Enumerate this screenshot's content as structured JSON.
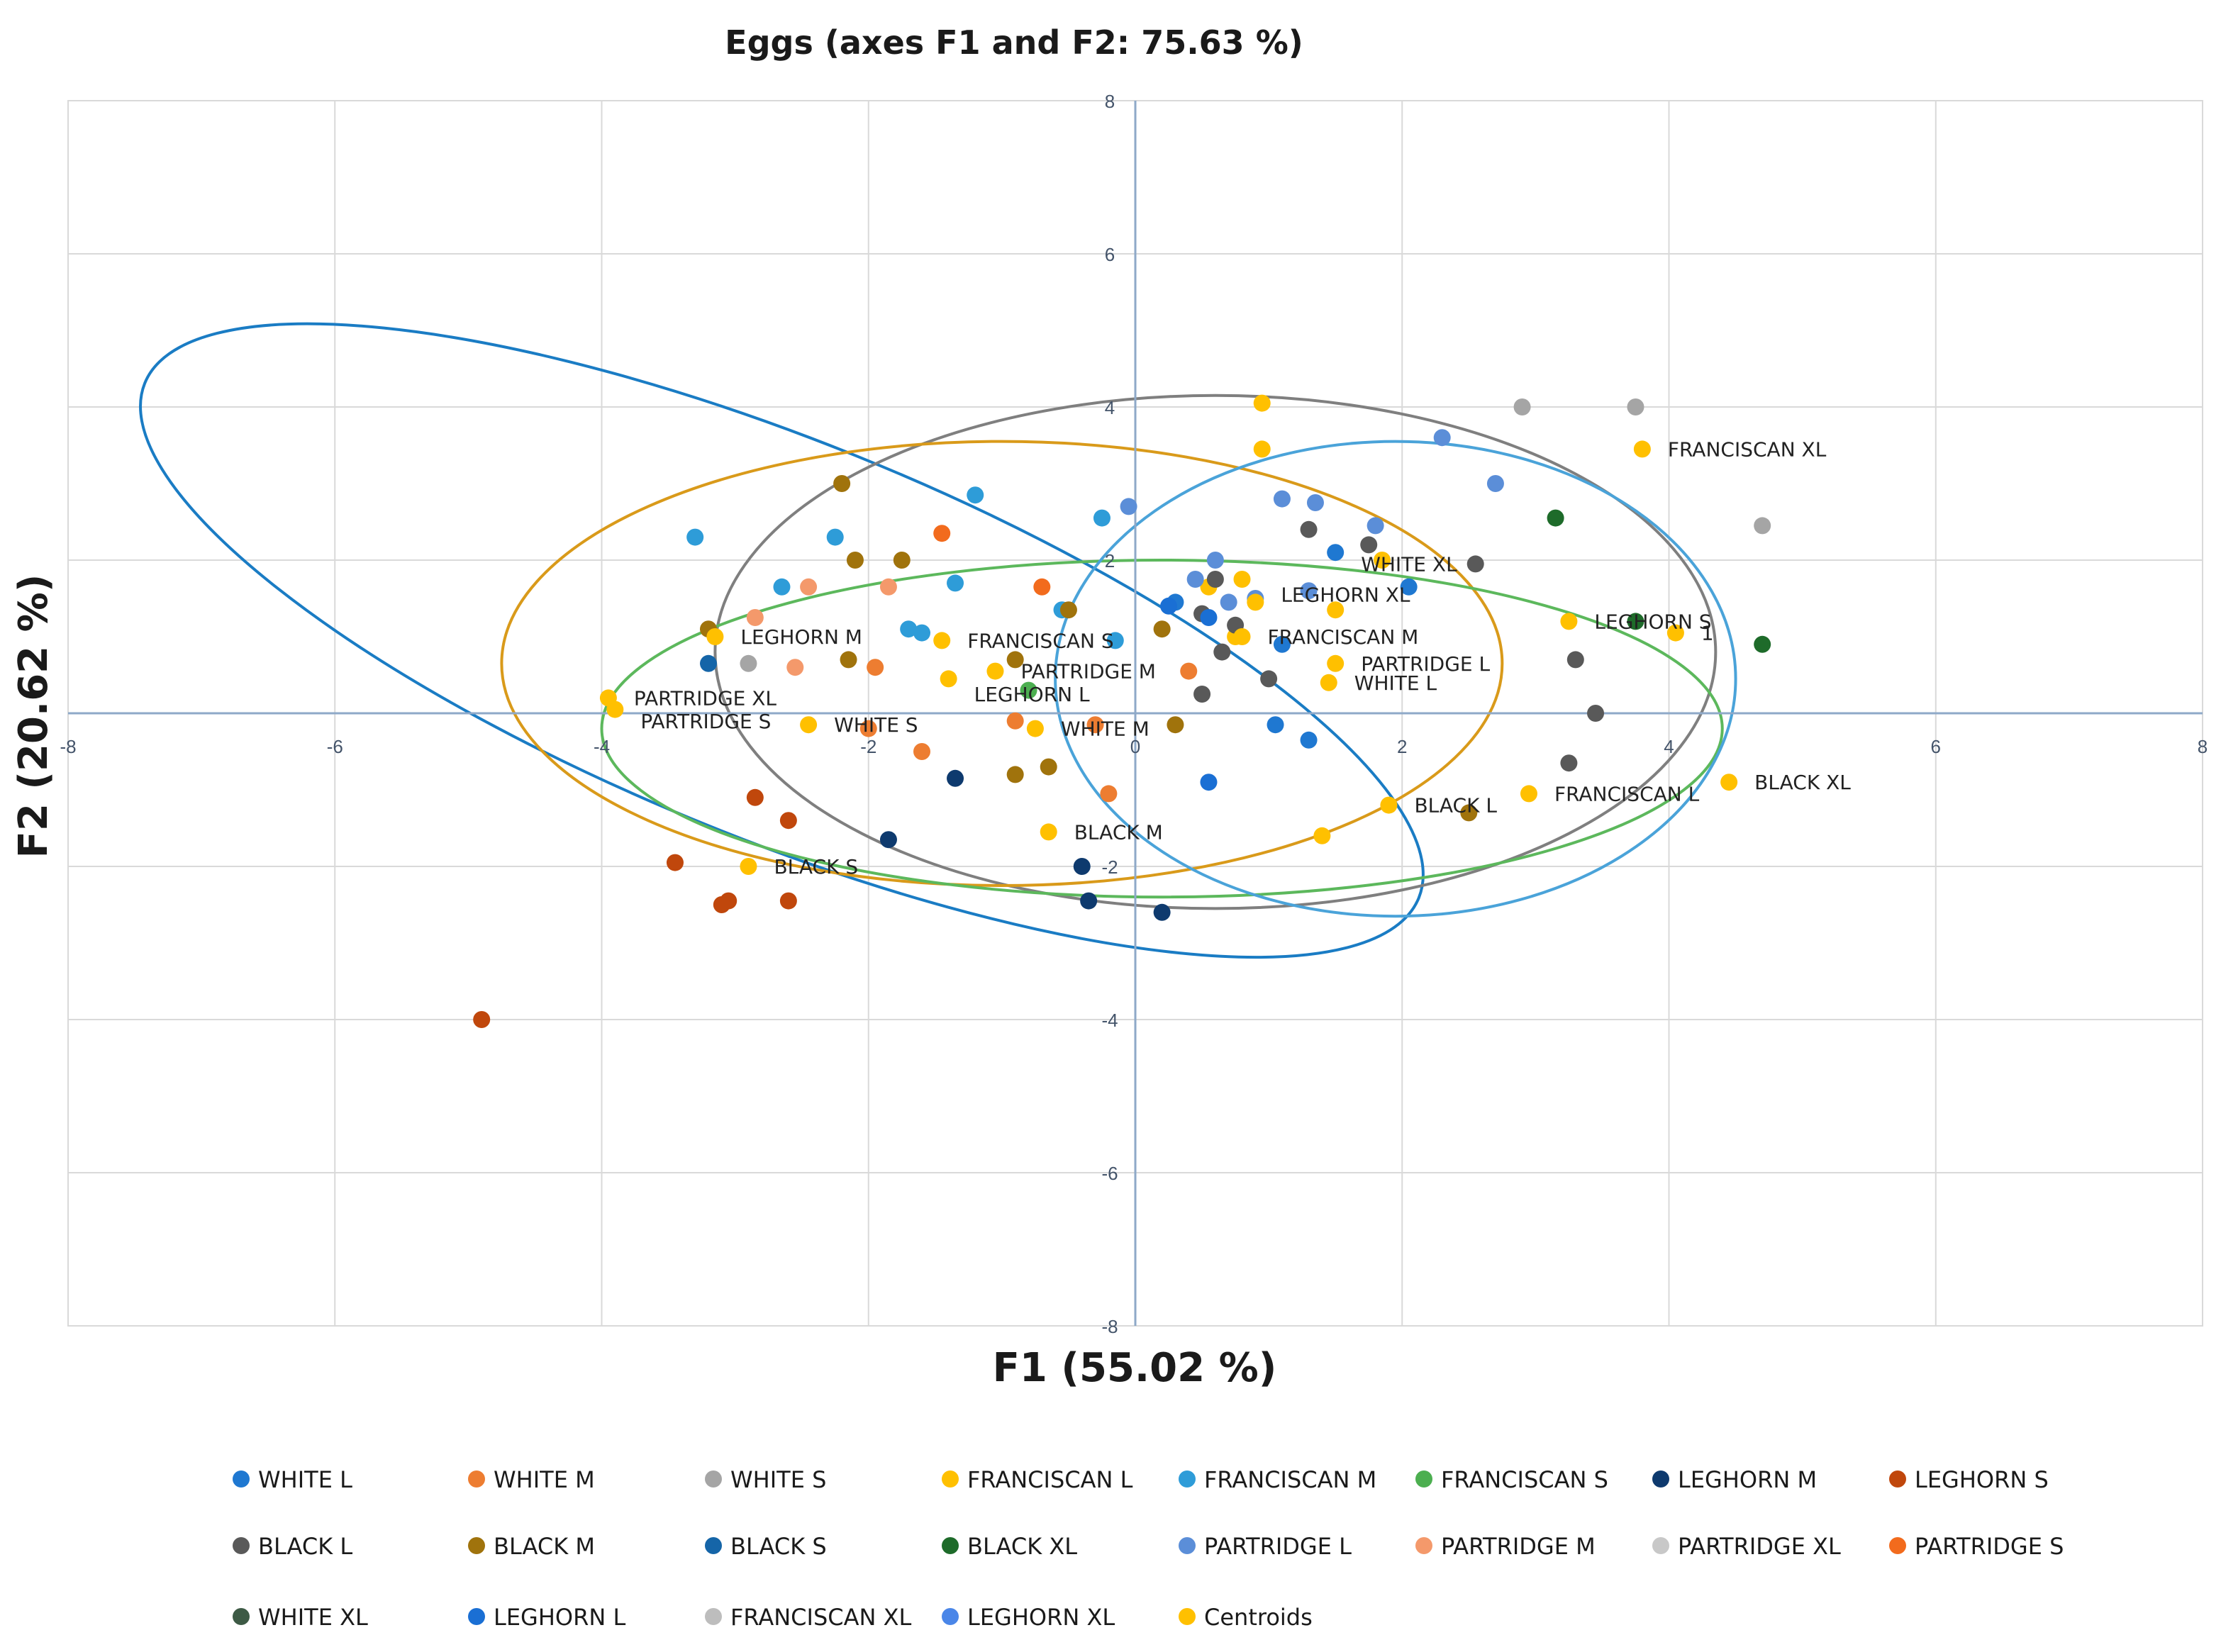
{
  "chart_data": {
    "type": "scatter",
    "title": "Eggs (axes F1 and F2: 75.63 %)",
    "xlabel": "F1 (55.02 %)",
    "ylabel": "F2 (20.62 %)",
    "xlim": [
      -8,
      8
    ],
    "ylim": [
      -8,
      8
    ],
    "x_ticks": [
      -8,
      -6,
      -4,
      -2,
      0,
      2,
      4,
      6,
      8
    ],
    "y_ticks": [
      -8,
      -6,
      -4,
      -2,
      2,
      4,
      6,
      8
    ],
    "grid": true,
    "legend_position": "bottom",
    "series": [
      {
        "name": "WHITE L",
        "color": "#1f78d1",
        "points": [
          [
            1.1,
            0.9
          ],
          [
            0.3,
            1.45
          ],
          [
            1.5,
            2.1
          ],
          [
            2.05,
            1.65
          ],
          [
            1.3,
            -0.35
          ],
          [
            1.05,
            -0.15
          ]
        ]
      },
      {
        "name": "WHITE M",
        "color": "#ed7d31",
        "points": [
          [
            -2.0,
            -0.2
          ],
          [
            -1.95,
            0.6
          ],
          [
            -1.6,
            -0.5
          ],
          [
            -0.9,
            -0.1
          ],
          [
            -0.2,
            -1.05
          ],
          [
            -0.3,
            -0.15
          ],
          [
            0.4,
            0.55
          ]
        ]
      },
      {
        "name": "WHITE S",
        "color": "#a5a5a5",
        "points": [
          [
            -2.9,
            0.65
          ],
          [
            2.9,
            4.0
          ],
          [
            3.75,
            4.0
          ],
          [
            4.7,
            2.45
          ]
        ]
      },
      {
        "name": "FRANCISCAN L",
        "color": "#ffc000",
        "points": [
          [
            0.95,
            4.05
          ],
          [
            0.95,
            3.45
          ],
          [
            1.85,
            2.0
          ],
          [
            0.8,
            1.75
          ],
          [
            1.4,
            -1.6
          ],
          [
            0.55,
            1.65
          ],
          [
            0.75,
            1.0
          ]
        ]
      },
      {
        "name": "FRANCISCAN M",
        "color": "#2e9cd8",
        "points": [
          [
            -3.3,
            2.3
          ],
          [
            -2.25,
            2.3
          ],
          [
            -1.2,
            2.85
          ],
          [
            -2.65,
            1.65
          ],
          [
            -1.35,
            1.7
          ],
          [
            -0.25,
            2.55
          ],
          [
            -1.7,
            1.1
          ],
          [
            -1.6,
            1.05
          ],
          [
            -0.55,
            1.35
          ],
          [
            -0.15,
            0.95
          ]
        ]
      },
      {
        "name": "FRANCISCAN S",
        "color": "#4caf50",
        "points": [
          [
            -0.8,
            0.3
          ]
        ]
      },
      {
        "name": "LEGHORN M",
        "color": "#0e3a6e",
        "points": [
          [
            -1.35,
            -0.85
          ],
          [
            -1.85,
            -1.65
          ],
          [
            -0.4,
            -2.0
          ],
          [
            -0.35,
            -2.45
          ],
          [
            0.2,
            -2.6
          ]
        ]
      },
      {
        "name": "LEGHORN S",
        "color": "#c0470c",
        "points": [
          [
            -2.85,
            -1.1
          ],
          [
            -2.6,
            -1.4
          ],
          [
            -3.45,
            -1.95
          ],
          [
            -3.05,
            -2.45
          ],
          [
            -3.1,
            -2.5
          ],
          [
            -2.6,
            -2.45
          ],
          [
            -4.9,
            -4.0
          ]
        ]
      },
      {
        "name": "BLACK L",
        "color": "#595959",
        "points": [
          [
            1.3,
            2.4
          ],
          [
            1.75,
            2.2
          ],
          [
            2.55,
            1.95
          ],
          [
            0.6,
            1.75
          ],
          [
            0.5,
            1.3
          ],
          [
            0.75,
            1.15
          ],
          [
            0.65,
            0.8
          ],
          [
            1.0,
            0.45
          ],
          [
            0.5,
            0.25
          ],
          [
            3.3,
            0.7
          ],
          [
            3.45,
            0.0
          ],
          [
            3.25,
            -0.65
          ]
        ]
      },
      {
        "name": "BLACK M",
        "color": "#a0730c",
        "points": [
          [
            -2.2,
            3.0
          ],
          [
            -2.1,
            2.0
          ],
          [
            -1.75,
            2.0
          ],
          [
            -3.2,
            1.1
          ],
          [
            -2.15,
            0.7
          ],
          [
            -0.9,
            0.7
          ],
          [
            -0.5,
            1.35
          ],
          [
            0.2,
            1.1
          ],
          [
            -0.9,
            -0.8
          ],
          [
            -0.65,
            -0.7
          ],
          [
            0.3,
            -0.15
          ],
          [
            2.5,
            -1.3
          ]
        ]
      },
      {
        "name": "BLACK S",
        "color": "#1565a8",
        "points": [
          [
            -3.2,
            0.65
          ]
        ]
      },
      {
        "name": "BLACK XL",
        "color": "#1e6b2a",
        "points": [
          [
            3.15,
            2.55
          ],
          [
            3.75,
            1.2
          ],
          [
            4.7,
            0.9
          ]
        ]
      },
      {
        "name": "PARTRIDGE L",
        "color": "#5b8ed8",
        "points": [
          [
            2.3,
            3.6
          ],
          [
            2.7,
            3.0
          ],
          [
            1.1,
            2.8
          ],
          [
            1.35,
            2.75
          ],
          [
            1.8,
            2.45
          ],
          [
            0.6,
            2.0
          ],
          [
            0.45,
            1.75
          ],
          [
            1.3,
            1.6
          ],
          [
            0.9,
            1.5
          ],
          [
            0.7,
            1.45
          ],
          [
            -0.05,
            2.7
          ]
        ]
      },
      {
        "name": "PARTRIDGE M",
        "color": "#f4996b",
        "points": [
          [
            -2.45,
            1.65
          ],
          [
            -1.85,
            1.65
          ],
          [
            -2.85,
            1.25
          ],
          [
            -2.55,
            0.6
          ]
        ]
      },
      {
        "name": "PARTRIDGE XL",
        "color": "#c8c8c8",
        "points": []
      },
      {
        "name": "PARTRIDGE S",
        "color": "#f26b1d",
        "points": [
          [
            -1.45,
            2.35
          ],
          [
            -0.7,
            1.65
          ]
        ]
      },
      {
        "name": "WHITE XL",
        "color": "#3d5a45",
        "points": []
      },
      {
        "name": "LEGHORN L",
        "color": "#1a6fd4",
        "points": [
          [
            0.55,
            1.25
          ],
          [
            0.55,
            -0.9
          ],
          [
            0.25,
            1.4
          ]
        ]
      },
      {
        "name": "FRANCISCAN XL",
        "color": "#bdbdbd",
        "points": []
      },
      {
        "name": "LEGHORN XL",
        "color": "#4a86e8",
        "points": []
      },
      {
        "name": "Centroids",
        "color": "#ffc000",
        "points": [
          [
            3.8,
            3.45
          ],
          [
            1.5,
            1.35
          ],
          [
            0.9,
            1.45
          ],
          [
            0.8,
            1.0
          ],
          [
            3.25,
            1.2
          ],
          [
            4.05,
            1.05
          ],
          [
            1.5,
            0.65
          ],
          [
            1.45,
            0.4
          ],
          [
            -3.95,
            0.2
          ],
          [
            -3.9,
            0.05
          ],
          [
            -3.15,
            1.0
          ],
          [
            -1.45,
            0.95
          ],
          [
            -1.05,
            0.55
          ],
          [
            -1.4,
            0.45
          ],
          [
            -2.45,
            -0.15
          ],
          [
            -0.75,
            -0.2
          ],
          [
            -0.65,
            -1.55
          ],
          [
            -2.9,
            -2.0
          ],
          [
            1.9,
            -1.2
          ],
          [
            2.95,
            -1.05
          ],
          [
            4.45,
            -0.9
          ]
        ]
      }
    ],
    "point_labels": [
      {
        "text": "FRANCISCAN XL",
        "x": 3.8,
        "y": 3.45
      },
      {
        "text": "WHITE XL",
        "x": 1.5,
        "y": 1.95
      },
      {
        "text": "LEGHORN XL",
        "x": 0.9,
        "y": 1.55
      },
      {
        "text": "FRANCISCAN M",
        "x": 0.8,
        "y": 1.0
      },
      {
        "text": "LEGHORN S",
        "x": 3.25,
        "y": 1.2
      },
      {
        "text": "1",
        "x": 4.05,
        "y": 1.05
      },
      {
        "text": "PARTRIDGE L",
        "x": 1.5,
        "y": 0.65
      },
      {
        "text": "WHITE L",
        "x": 1.45,
        "y": 0.4
      },
      {
        "text": "LEGHORN M",
        "x": -3.15,
        "y": 1.0
      },
      {
        "text": "FRANCISCAN S",
        "x": -1.45,
        "y": 0.95
      },
      {
        "text": "PARTRIDGE M",
        "x": -1.05,
        "y": 0.55
      },
      {
        "text": "LEGHORN L",
        "x": -1.4,
        "y": 0.25
      },
      {
        "text": "PARTRIDGE XL",
        "x": -3.95,
        "y": 0.2
      },
      {
        "text": "PARTRIDGE S",
        "x": -3.9,
        "y": -0.1
      },
      {
        "text": "WHITE S",
        "x": -2.45,
        "y": -0.15
      },
      {
        "text": "WHITE M",
        "x": -0.75,
        "y": -0.2
      },
      {
        "text": "BLACK M",
        "x": -0.65,
        "y": -1.55
      },
      {
        "text": "BLACK S",
        "x": -2.9,
        "y": -2.0
      },
      {
        "text": "BLACK L",
        "x": 1.9,
        "y": -1.2
      },
      {
        "text": "FRANCISCAN L",
        "x": 2.95,
        "y": -1.05
      },
      {
        "text": "BLACK XL",
        "x": 4.45,
        "y": -0.9
      }
    ],
    "ellipses": [
      {
        "name": "blue",
        "color": "#1a7cc4",
        "cx": -2.65,
        "cy": 0.95,
        "rx": 5.15,
        "ry": 2.6,
        "angle": -22
      },
      {
        "name": "gray",
        "color": "#7f7f7f",
        "cx": 0.6,
        "cy": 0.8,
        "rx": 3.75,
        "ry": 3.35,
        "angle": 0
      },
      {
        "name": "orange",
        "color": "#d99a1a",
        "cx": -1.0,
        "cy": 0.65,
        "rx": 3.75,
        "ry": 2.9,
        "angle": 0
      },
      {
        "name": "green",
        "color": "#5cb85c",
        "cx": 0.2,
        "cy": -0.2,
        "rx": 4.2,
        "ry": 2.2,
        "angle": 0
      },
      {
        "name": "lightblue",
        "color": "#4aa3d9",
        "cx": 1.95,
        "cy": 0.45,
        "rx": 2.55,
        "ry": 3.1,
        "angle": 0
      }
    ]
  }
}
